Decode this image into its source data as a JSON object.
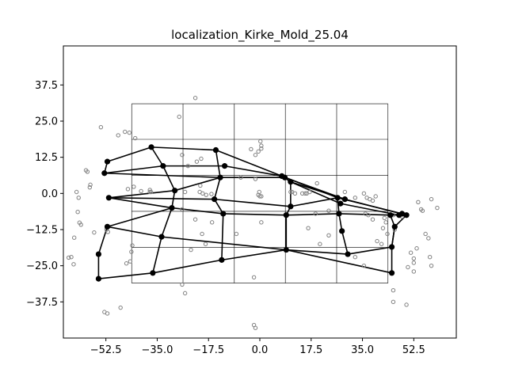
{
  "chart_data": {
    "type": "scatter",
    "title": "localization_Kirke_Mold_25.04",
    "xlabel": "",
    "ylabel": "",
    "xlim": [
      -67.0,
      67.0
    ],
    "ylim": [
      -50.0,
      51.0
    ],
    "x_ticks": [
      -52.5,
      -35.0,
      -17.5,
      0.0,
      17.5,
      35.0,
      52.5
    ],
    "x_tick_labels": [
      "−52.5",
      "−35.0",
      "−17.5",
      "0.0",
      "17.5",
      "35.0",
      "52.5"
    ],
    "y_ticks": [
      37.5,
      25.0,
      12.5,
      0.0,
      -12.5,
      -25.0,
      -37.5
    ],
    "y_tick_labels": [
      "37.5",
      "25.0",
      "12.5",
      "0.0",
      "−12.5",
      "−25.0",
      "−37.5"
    ],
    "grid": {
      "x_lines": [
        -43.7,
        -26.2,
        -8.7,
        8.7,
        26.2,
        43.7
      ],
      "y_lines": [
        31.0,
        18.7,
        6.2,
        -6.2,
        -18.7,
        -31.0
      ]
    },
    "colors": {
      "points": "#808080",
      "nodes": "#000000",
      "grid": "#000000"
    },
    "scatter_points": [
      [
        -22.0,
        33.0
      ],
      [
        -27.5,
        26.5
      ],
      [
        -54.2,
        22.9
      ],
      [
        -46.0,
        21.3
      ],
      [
        -44.5,
        21.0
      ],
      [
        -48.3,
        20.1
      ],
      [
        -42.5,
        19.1
      ],
      [
        -59.3,
        8.0
      ],
      [
        -58.8,
        7.5
      ],
      [
        -62.5,
        0.5
      ],
      [
        -61.8,
        -1.5
      ],
      [
        -62.1,
        -6.4
      ],
      [
        -61.5,
        -10.1
      ],
      [
        -61.0,
        -10.8
      ],
      [
        -58.0,
        2.1
      ],
      [
        -57.8,
        3.0
      ],
      [
        -63.3,
        -15.3
      ],
      [
        -65.2,
        -22.2
      ],
      [
        -64.3,
        -22.0
      ],
      [
        -63.5,
        -24.5
      ],
      [
        -56.5,
        -13.5
      ],
      [
        -52.3,
        -12.5
      ],
      [
        -51.8,
        -13.3
      ],
      [
        -45.0,
        1.5
      ],
      [
        -43.0,
        2.3
      ],
      [
        -40.5,
        0.8
      ],
      [
        -37.5,
        1.2
      ],
      [
        -37.1,
        0.5
      ],
      [
        -43.5,
        -18.0
      ],
      [
        -43.8,
        -20.2
      ],
      [
        -44.2,
        -23.5
      ],
      [
        -45.5,
        -24.2
      ],
      [
        -26.5,
        13.3
      ],
      [
        -24.5,
        9.5
      ],
      [
        -20.0,
        12.0
      ],
      [
        -21.5,
        11.0
      ],
      [
        -20.3,
        2.7
      ],
      [
        -20.5,
        0.5
      ],
      [
        -19.5,
        0.0
      ],
      [
        -18.3,
        -0.5
      ],
      [
        -16.5,
        -0.2
      ],
      [
        -25.5,
        0.5
      ],
      [
        -26.5,
        -5.5
      ],
      [
        -22.0,
        -9.0
      ],
      [
        -19.7,
        -14.0
      ],
      [
        -16.3,
        -10.0
      ],
      [
        -23.5,
        -19.5
      ],
      [
        -18.5,
        -17.5
      ],
      [
        -26.5,
        -31.5
      ],
      [
        -25.5,
        -34.5
      ],
      [
        -8.0,
        -14.0
      ],
      [
        -6.5,
        5.5
      ],
      [
        -3.0,
        15.3
      ],
      [
        -1.5,
        13.3
      ],
      [
        -0.5,
        14.5
      ],
      [
        0.5,
        15.5
      ],
      [
        0.5,
        16.5
      ],
      [
        0.2,
        18.0
      ],
      [
        -0.2,
        0.5
      ],
      [
        -0.5,
        -0.5
      ],
      [
        0.5,
        -1.0
      ],
      [
        0.0,
        -1.0
      ],
      [
        0.5,
        -10.0
      ],
      [
        -2.0,
        -29.0
      ],
      [
        -1.5,
        5.0
      ],
      [
        10.5,
        0.5
      ],
      [
        11.0,
        0.5
      ],
      [
        12.0,
        0.0
      ],
      [
        14.5,
        0.0
      ],
      [
        15.5,
        0.0
      ],
      [
        16.0,
        0.0
      ],
      [
        17.0,
        0.5
      ],
      [
        19.5,
        3.5
      ],
      [
        16.5,
        -12.0
      ],
      [
        19.0,
        -7.0
      ],
      [
        20.5,
        -17.5
      ],
      [
        23.5,
        -14.5
      ],
      [
        23.5,
        -6.0
      ],
      [
        29.0,
        0.5
      ],
      [
        32.5,
        -1.5
      ],
      [
        35.5,
        -25.0
      ],
      [
        32.5,
        -22.0
      ],
      [
        35.5,
        0.0
      ],
      [
        36.5,
        -1.5
      ],
      [
        37.5,
        -2.0
      ],
      [
        38.5,
        -2.5
      ],
      [
        39.5,
        -1.0
      ],
      [
        36.0,
        -7.0
      ],
      [
        37.0,
        -7.5
      ],
      [
        38.5,
        -9.0
      ],
      [
        42.5,
        -8.5
      ],
      [
        43.0,
        -10.0
      ],
      [
        42.0,
        -12.0
      ],
      [
        43.5,
        -14.0
      ],
      [
        40.0,
        -16.5
      ],
      [
        41.5,
        -17.5
      ],
      [
        45.5,
        -7.5
      ],
      [
        48.5,
        -8.0
      ],
      [
        46.0,
        -12.5
      ],
      [
        54.0,
        -3.0
      ],
      [
        55.0,
        -5.5
      ],
      [
        55.5,
        -6.0
      ],
      [
        58.5,
        -2.0
      ],
      [
        60.5,
        -5.0
      ],
      [
        56.5,
        -14.0
      ],
      [
        57.5,
        -15.5
      ],
      [
        51.5,
        -20.5
      ],
      [
        53.5,
        -19.0
      ],
      [
        52.5,
        -22.5
      ],
      [
        52.5,
        -24.0
      ],
      [
        50.5,
        -25.5
      ],
      [
        52.5,
        -27.0
      ],
      [
        58.0,
        -22.0
      ],
      [
        58.5,
        -25.0
      ],
      [
        45.5,
        -33.5
      ],
      [
        45.5,
        -37.5
      ],
      [
        50.0,
        -38.5
      ],
      [
        -53.0,
        -41.0
      ],
      [
        -52.0,
        -41.5
      ],
      [
        -47.5,
        -39.5
      ],
      [
        -2.0,
        -45.5
      ],
      [
        -1.5,
        -46.5
      ],
      [
        -37.5,
        0.5
      ]
    ],
    "network_nodes": [
      [
        -37.0,
        16.0
      ],
      [
        -52.0,
        11.0
      ],
      [
        -15.0,
        15.0
      ],
      [
        -12.0,
        9.5
      ],
      [
        -33.0,
        9.5
      ],
      [
        -53.0,
        7.0
      ],
      [
        7.5,
        6.0
      ],
      [
        8.5,
        5.5
      ],
      [
        10.5,
        4.0
      ],
      [
        -29.0,
        1.0
      ],
      [
        -13.5,
        5.5
      ],
      [
        26.5,
        -1.5
      ],
      [
        29.0,
        -2.0
      ],
      [
        27.5,
        -3.5
      ],
      [
        -51.5,
        -1.5
      ],
      [
        -15.5,
        -2.0
      ],
      [
        -30.0,
        -5.0
      ],
      [
        10.5,
        -4.5
      ],
      [
        -12.5,
        -7.0
      ],
      [
        9.0,
        -7.5
      ],
      [
        27.0,
        -7.0
      ],
      [
        44.5,
        -7.5
      ],
      [
        48.5,
        -7.0
      ],
      [
        47.5,
        -7.5
      ],
      [
        50.0,
        -7.5
      ],
      [
        -52.0,
        -11.5
      ],
      [
        -33.5,
        -15.0
      ],
      [
        46.0,
        -11.5
      ],
      [
        28.0,
        -13.0
      ],
      [
        45.0,
        -18.5
      ],
      [
        -55.0,
        -21.0
      ],
      [
        9.0,
        -19.5
      ],
      [
        30.0,
        -21.0
      ],
      [
        -13.0,
        -23.0
      ],
      [
        -36.5,
        -27.5
      ],
      [
        -55.0,
        -29.5
      ],
      [
        45.0,
        -27.5
      ]
    ],
    "network_edges": [
      [
        0,
        1
      ],
      [
        0,
        2
      ],
      [
        2,
        6
      ],
      [
        4,
        3
      ],
      [
        3,
        6
      ],
      [
        5,
        10
      ],
      [
        10,
        7
      ],
      [
        6,
        11
      ],
      [
        7,
        12
      ],
      [
        8,
        13
      ],
      [
        9,
        14
      ],
      [
        14,
        16
      ],
      [
        9,
        10
      ],
      [
        16,
        18
      ],
      [
        18,
        19
      ],
      [
        19,
        20
      ],
      [
        20,
        21
      ],
      [
        21,
        27
      ],
      [
        16,
        25
      ],
      [
        25,
        26
      ],
      [
        26,
        31
      ],
      [
        31,
        32
      ],
      [
        32,
        29
      ],
      [
        29,
        27
      ],
      [
        25,
        30
      ],
      [
        30,
        35
      ],
      [
        35,
        34
      ],
      [
        34,
        33
      ],
      [
        33,
        31
      ],
      [
        31,
        36
      ],
      [
        11,
        22
      ],
      [
        13,
        23
      ],
      [
        12,
        24
      ],
      [
        1,
        5
      ],
      [
        5,
        4
      ],
      [
        4,
        0
      ],
      [
        4,
        9
      ],
      [
        9,
        16
      ],
      [
        16,
        26
      ],
      [
        26,
        34
      ],
      [
        2,
        10
      ],
      [
        10,
        15
      ],
      [
        15,
        18
      ],
      [
        18,
        33
      ],
      [
        6,
        8
      ],
      [
        8,
        17
      ],
      [
        17,
        19
      ],
      [
        19,
        31
      ],
      [
        11,
        20
      ],
      [
        20,
        28
      ],
      [
        28,
        32
      ],
      [
        21,
        24
      ],
      [
        24,
        27
      ],
      [
        27,
        29
      ],
      [
        29,
        36
      ],
      [
        14,
        15
      ],
      [
        15,
        17
      ],
      [
        17,
        11
      ],
      [
        8,
        12
      ]
    ]
  }
}
